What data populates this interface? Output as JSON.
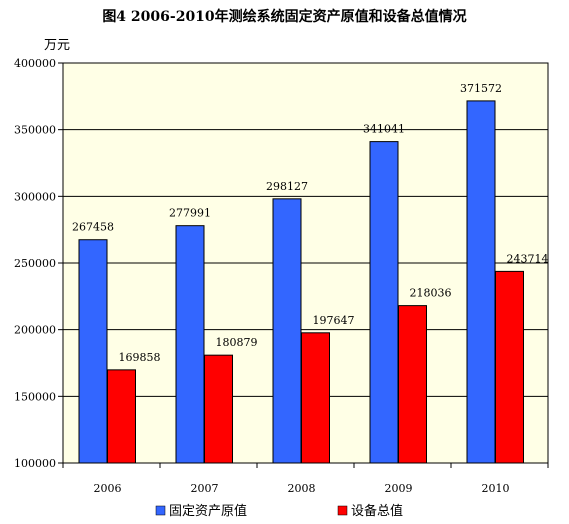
{
  "chart_data": {
    "type": "bar",
    "title": "图4    2006-2010年测绘系统固定资产原值和设备总值情况",
    "ylabel": "万元",
    "xlabel": "",
    "categories": [
      "2006",
      "2007",
      "2008",
      "2009",
      "2010"
    ],
    "ylim": [
      100000,
      400000
    ],
    "yticks": [
      "100000",
      "150000",
      "200000",
      "250000",
      "300000",
      "350000",
      "400000"
    ],
    "grid": true,
    "legend_position": "bottom",
    "series": [
      {
        "name": "固定资产原值",
        "color": "#3366ff",
        "values": [
          267458,
          277991,
          298127,
          341041,
          371572
        ]
      },
      {
        "name": "设备总值",
        "color": "#ff0000",
        "values": [
          169858,
          180879,
          197647,
          218036,
          243714
        ]
      }
    ],
    "plot_background": "#ffffe6"
  }
}
